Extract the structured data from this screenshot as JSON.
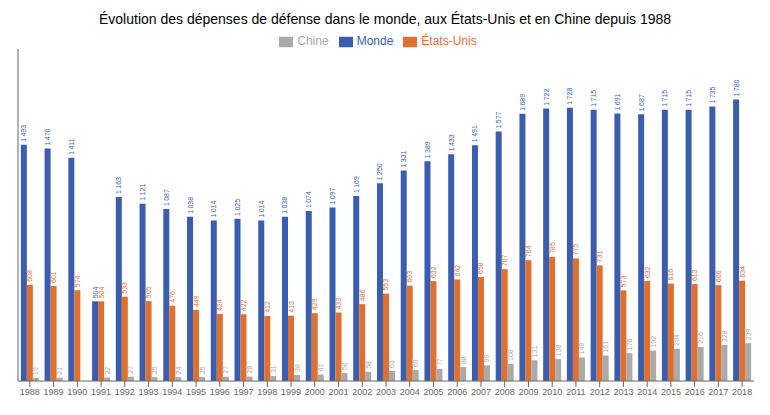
{
  "chart_data": {
    "type": "bar",
    "title": "Évolution des dépenses de défense dans le monde, aux États-Unis et en Chine depuis 1988",
    "categories": [
      "1988",
      "1989",
      "1990",
      "1991",
      "1992",
      "1993",
      "1994",
      "1995",
      "1996",
      "1997",
      "1998",
      "1999",
      "2000",
      "2001",
      "2002",
      "2003",
      "2004",
      "2005",
      "2006",
      "2007",
      "2008",
      "2009",
      "2010",
      "2011",
      "2012",
      "2013",
      "2014",
      "2015",
      "2016",
      "2017",
      "2018"
    ],
    "series": [
      {
        "name": "Monde",
        "color": "#3A5DAE",
        "values": [
          1493,
          1470,
          1411,
          504,
          1163,
          1121,
          1087,
          1038,
          1014,
          1025,
          1014,
          1038,
          1074,
          1097,
          1169,
          1250,
          1331,
          1389,
          1433,
          1491,
          1577,
          1689,
          1722,
          1728,
          1715,
          1691,
          1687,
          1715,
          1715,
          1735,
          1780
        ],
        "value_labels": [
          "1 493",
          "1 470",
          "1 411",
          "504",
          "1 163",
          "1 121",
          "1 087",
          "1 038",
          "1 014",
          "1 025",
          "1 014",
          "1 038",
          "1 074",
          "1 097",
          "1 169",
          "1 250",
          "1 331",
          "1 389",
          "1 433",
          "1 491",
          "1 577",
          "1 689",
          "1 722",
          "1 728",
          "1 715",
          "1 691",
          "1 687",
          "1 715",
          "1 715",
          "1 735",
          "1 780"
        ]
      },
      {
        "name": "États-Unis",
        "color": "#E07030",
        "values": [
          608,
          601,
          574,
          504,
          533,
          505,
          476,
          449,
          424,
          422,
          412,
          413,
          429,
          433,
          486,
          553,
          603,
          632,
          642,
          658,
          707,
          764,
          785,
          775,
          731,
          573,
          632,
          616,
          613,
          606,
          634
        ]
      },
      {
        "name": "Chine",
        "color": "#AAAAAA",
        "values": [
          19,
          21,
          0,
          22,
          27,
          25,
          24,
          25,
          27,
          28,
          31,
          38,
          41,
          50,
          58,
          63,
          69,
          77,
          88,
          99,
          108,
          131,
          138,
          149,
          161,
          176,
          192,
          204,
          216,
          228,
          239
        ],
        "value_labels": [
          "19",
          "21",
          null,
          "22",
          "27",
          "25",
          "24",
          "25",
          "27",
          "28",
          "31",
          "38",
          "41",
          "50",
          "58",
          "63",
          "69",
          "77",
          "88",
          "99",
          "108",
          "131",
          "138",
          "149",
          "161",
          "176",
          "192",
          "204",
          "216",
          "228",
          "239"
        ]
      }
    ],
    "ylim": [
      0,
      2100
    ],
    "data_labels": true,
    "grid": false,
    "legend": "top",
    "tick_labels": "x"
  }
}
